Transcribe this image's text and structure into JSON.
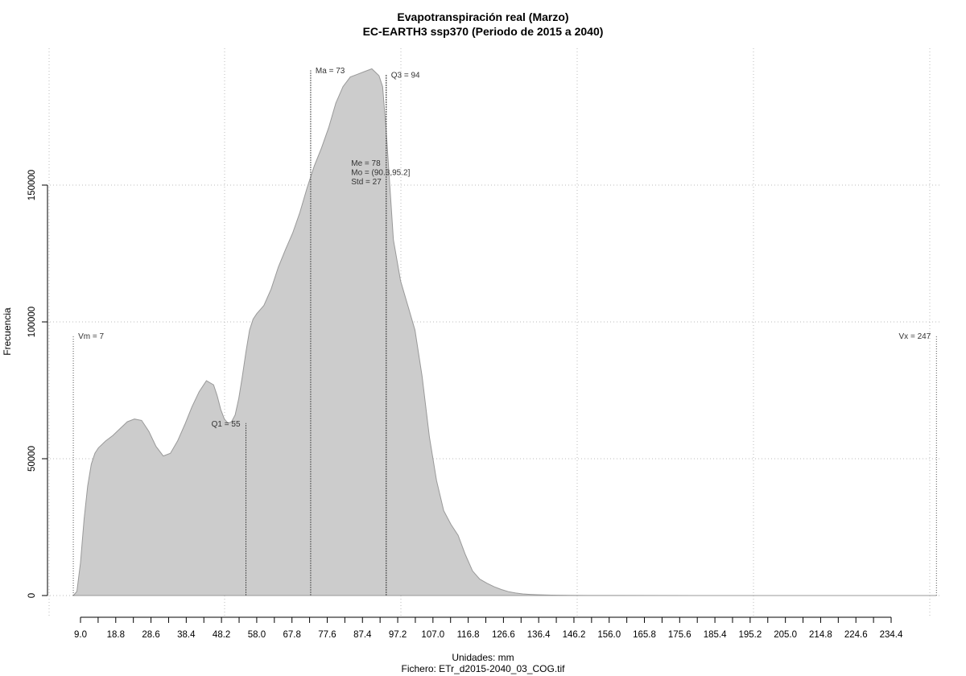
{
  "chart_data": {
    "type": "area",
    "title": "Evapotranspiración real (Marzo)",
    "subtitle": "EC-EARTH3 ssp370 (Periodo de 2015 a 2040)",
    "xlabel": "Unidades: mm",
    "ylabel": "Frecuencia",
    "footer": "Fichero: ETr_d2015-2040_03_COG.tif",
    "xlim": [
      6,
      250
    ],
    "ylim": [
      0,
      193000
    ],
    "x_ticks": [
      9.0,
      18.8,
      28.6,
      38.4,
      48.2,
      58.0,
      67.8,
      77.6,
      87.4,
      97.2,
      107.0,
      116.8,
      126.6,
      136.4,
      146.2,
      156.0,
      165.8,
      175.6,
      185.4,
      195.2,
      205.0,
      214.8,
      224.6,
      234.4
    ],
    "x_tick_labels": [
      "9.0",
      "18.8",
      "28.6",
      "38.4",
      "48.2",
      "58.0",
      "67.8",
      "77.6",
      "87.4",
      "97.2",
      "107.0",
      "116.8",
      "126.6",
      "136.4",
      "146.2",
      "156.0",
      "165.8",
      "175.6",
      "185.4",
      "195.2",
      "205.0",
      "214.8",
      "224.6",
      "234.4"
    ],
    "y_ticks": [
      0,
      50000,
      100000,
      150000
    ],
    "y_tick_labels": [
      "0",
      "50000",
      "100000",
      "150000"
    ],
    "grid": true,
    "fill_color": "#cccccc",
    "line_color": "#999999",
    "series": [
      {
        "x": [
          7,
          8,
          9,
          10,
          11,
          12,
          13,
          14,
          16,
          18,
          20,
          22,
          24,
          26,
          28,
          30,
          32,
          34,
          36,
          38,
          40,
          42,
          44,
          46,
          47,
          48,
          49,
          50,
          51,
          52,
          53,
          54,
          55,
          56,
          57,
          58,
          60,
          62,
          64,
          66,
          68,
          70,
          72,
          74,
          76,
          78,
          80,
          82,
          84,
          86,
          88,
          90,
          92,
          93,
          94,
          95,
          96,
          98,
          100,
          102,
          104,
          106,
          108,
          110,
          112,
          114,
          116,
          118,
          120,
          122,
          124,
          126,
          128,
          130,
          132,
          134,
          136,
          140,
          145,
          150,
          160,
          180,
          200,
          220,
          240,
          247
        ],
        "y": [
          0,
          1500,
          12000,
          28000,
          40000,
          48000,
          52000,
          54000,
          56500,
          58500,
          61000,
          63500,
          64500,
          64000,
          60000,
          54500,
          51000,
          52000,
          56500,
          62500,
          69000,
          74500,
          78500,
          77000,
          73000,
          68000,
          64500,
          63000,
          63500,
          66000,
          72000,
          80000,
          89000,
          97000,
          101000,
          103000,
          106000,
          112000,
          120000,
          126500,
          132500,
          140000,
          149000,
          157000,
          163500,
          171000,
          180000,
          186000,
          189500,
          190500,
          191500,
          192500,
          190000,
          186000,
          170000,
          150000,
          130000,
          115000,
          106000,
          97000,
          80000,
          58000,
          42000,
          31000,
          26000,
          22000,
          15000,
          9000,
          6000,
          4500,
          3200,
          2200,
          1400,
          900,
          600,
          400,
          300,
          150,
          80,
          40,
          20,
          10,
          5,
          2,
          0,
          0
        ]
      }
    ],
    "annotations": [
      {
        "label": "Vm = 7",
        "x": 7,
        "y": 95000,
        "align": "start"
      },
      {
        "label": "Q1 = 55",
        "x": 55,
        "y": 63000,
        "align": "end"
      },
      {
        "label": "Ma = 73",
        "x": 73,
        "y": 192000,
        "align": "start"
      },
      {
        "label": "Q3 = 94",
        "x": 94,
        "y": 190500,
        "align": "start"
      },
      {
        "label": "Vx = 247",
        "x": 247,
        "y": 95000,
        "align": "end"
      }
    ],
    "stats_box": {
      "x": 78,
      "lines": [
        "Me = 78",
        "Mo = (90.3,95.2]",
        "Std = 27"
      ]
    }
  }
}
